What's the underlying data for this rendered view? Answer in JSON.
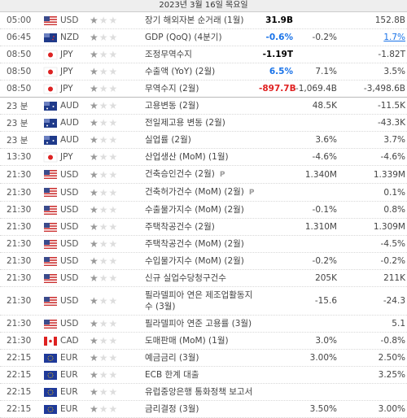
{
  "header": {
    "title": "2023년 3월 16일 목요일"
  },
  "rows": [
    {
      "time": "05:00",
      "currency": "USD",
      "importance": 1,
      "event": "장기 해외자본 순거래 (1월)",
      "actual": "31.9B",
      "actual_color": "#000000",
      "forecast": null,
      "previous": "152.8B"
    },
    {
      "time": "06:45",
      "currency": "NZD",
      "importance": 1,
      "event": "GDP (QoQ) (4분기)",
      "actual": "-0.6%",
      "actual_color": "#1a73e8",
      "forecast": "-0.2%",
      "previous": "1.7%",
      "previous_revised": true
    },
    {
      "time": "08:50",
      "currency": "JPY",
      "importance": 1,
      "event": "조정무역수지",
      "actual": "-1.19T",
      "actual_color": "#000000",
      "forecast": null,
      "previous": "-1.82T"
    },
    {
      "time": "08:50",
      "currency": "JPY",
      "importance": 1,
      "event": "수출액 (YoY) (2월)",
      "actual": "6.5%",
      "actual_color": "#1a73e8",
      "forecast": "7.1%",
      "previous": "3.5%"
    },
    {
      "time": "08:50",
      "currency": "JPY",
      "importance": 1,
      "event": "무역수지 (2월)",
      "actual": "-897.7B",
      "actual_color": "#e02020",
      "forecast": "-1,069.4B",
      "previous": "-3,498.6B"
    },
    {
      "time": "23 분",
      "currency": "AUD",
      "importance": 1,
      "event": "고용변동 (2월)",
      "actual": null,
      "forecast": "48.5K",
      "previous": "-11.5K"
    },
    {
      "time": "23 분",
      "currency": "AUD",
      "importance": 1,
      "event": "전일제고용 변동 (2월)",
      "actual": null,
      "forecast": null,
      "previous": "-43.3K"
    },
    {
      "time": "23 분",
      "currency": "AUD",
      "importance": 1,
      "event": "실업률 (2월)",
      "actual": null,
      "forecast": "3.6%",
      "previous": "3.7%"
    },
    {
      "time": "13:30",
      "currency": "JPY",
      "importance": 1,
      "event": "산업생산 (MoM) (1월)",
      "actual": null,
      "forecast": "-4.6%",
      "previous": "-4.6%"
    },
    {
      "time": "21:30",
      "currency": "USD",
      "importance": 1,
      "event": "건축승인건수 (2월)",
      "note": "P",
      "actual": null,
      "forecast": "1.340M",
      "previous": "1.339M"
    },
    {
      "time": "21:30",
      "currency": "USD",
      "importance": 1,
      "event": "건축허가건수 (MoM) (2월)",
      "note": "P",
      "actual": null,
      "forecast": null,
      "previous": "0.1%"
    },
    {
      "time": "21:30",
      "currency": "USD",
      "importance": 1,
      "event": "수출물가지수 (MoM) (2월)",
      "actual": null,
      "forecast": "-0.1%",
      "previous": "0.8%"
    },
    {
      "time": "21:30",
      "currency": "USD",
      "importance": 1,
      "event": "주택착공건수 (2월)",
      "actual": null,
      "forecast": "1.310M",
      "previous": "1.309M"
    },
    {
      "time": "21:30",
      "currency": "USD",
      "importance": 1,
      "event": "주택착공건수 (MoM) (2월)",
      "actual": null,
      "forecast": null,
      "previous": "-4.5%"
    },
    {
      "time": "21:30",
      "currency": "USD",
      "importance": 1,
      "event": "수입물가지수 (MoM) (2월)",
      "actual": null,
      "forecast": "-0.2%",
      "previous": "-0.2%"
    },
    {
      "time": "21:30",
      "currency": "USD",
      "importance": 1,
      "event": "신규 실업수당청구건수",
      "actual": null,
      "forecast": "205K",
      "previous": "211K"
    },
    {
      "time": "21:30",
      "currency": "USD",
      "importance": 1,
      "event": "필라델피아 연은 제조업활동지수 (3월)",
      "actual": null,
      "forecast": "-15.6",
      "previous": "-24.3"
    },
    {
      "time": "21:30",
      "currency": "USD",
      "importance": 1,
      "event": "필라델피아 연준 고용률 (3월)",
      "actual": null,
      "forecast": null,
      "previous": "5.1"
    },
    {
      "time": "21:30",
      "currency": "CAD",
      "importance": 1,
      "event": "도매판매 (MoM) (1월)",
      "actual": null,
      "forecast": "3.0%",
      "previous": "-0.8%"
    },
    {
      "time": "22:15",
      "currency": "EUR",
      "importance": 1,
      "event": "예금금리 (3월)",
      "actual": null,
      "forecast": "3.00%",
      "previous": "2.50%"
    },
    {
      "time": "22:15",
      "currency": "EUR",
      "importance": 1,
      "event": "ECB 한계 대출",
      "actual": null,
      "forecast": null,
      "previous": "3.25%"
    },
    {
      "time": "22:15",
      "currency": "EUR",
      "importance": 1,
      "event": "유럽중앙은행 통화정책 보고서",
      "actual": null,
      "forecast": null,
      "previous": null
    },
    {
      "time": "22:15",
      "currency": "EUR",
      "importance": 1,
      "event": "금리결정 (3월)",
      "actual": null,
      "forecast": "3.50%",
      "previous": "3.00%"
    }
  ]
}
